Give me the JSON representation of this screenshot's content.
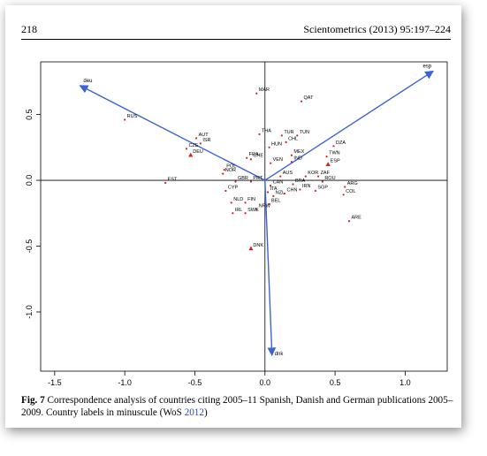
{
  "header": {
    "page_number": "218",
    "running_head": "Scientometrics (2013) 95:197–224"
  },
  "caption": {
    "label": "Fig. 7",
    "text": "Correspondence analysis of countries citing 2005–11 Spanish, Danish and German publications 2005–2009. Country labels in minuscule (WoS ",
    "cite": "2012",
    "close": ")"
  },
  "colors": {
    "vector": "#3b63d6",
    "point": "#cc2222",
    "axis": "#000000"
  },
  "chart_data": {
    "type": "scatter",
    "xlim": [
      -1.6,
      1.3
    ],
    "ylim": [
      -1.45,
      0.9
    ],
    "x_ticks": [
      -1.5,
      -1.0,
      -0.5,
      0.0,
      0.5,
      1.0
    ],
    "x_tick_labels": [
      "-1.5",
      "-1.0",
      "-0.5",
      "0.0",
      "0.5",
      "1.0"
    ],
    "y_ticks": [
      0.5,
      0.0,
      -0.5,
      -1.0
    ],
    "y_tick_labels": [
      "0.5",
      "0.0",
      "-0.5",
      "-1.0"
    ],
    "grid": false,
    "vectors": [
      {
        "name": "deu",
        "x": -1.32,
        "y": 0.72
      },
      {
        "name": "esp",
        "x": 1.2,
        "y": 0.83
      },
      {
        "name": "dnk",
        "x": 0.05,
        "y": -1.33
      }
    ],
    "points": [
      {
        "label": "MAR",
        "x": -0.06,
        "y": 0.66,
        "marker": "dot"
      },
      {
        "label": "QAT",
        "x": 0.26,
        "y": 0.6,
        "marker": "dot"
      },
      {
        "label": "RUS",
        "x": -1.0,
        "y": 0.46,
        "marker": "dot"
      },
      {
        "label": "AUT",
        "x": -0.49,
        "y": 0.32,
        "marker": "dot"
      },
      {
        "label": "ISR",
        "x": -0.46,
        "y": 0.28,
        "marker": "dot"
      },
      {
        "label": "THA",
        "x": -0.04,
        "y": 0.35,
        "marker": "dot"
      },
      {
        "label": "TUR",
        "x": 0.12,
        "y": 0.34,
        "marker": "dot"
      },
      {
        "label": "TUN",
        "x": 0.23,
        "y": 0.34,
        "marker": "dot"
      },
      {
        "label": "CHL",
        "x": 0.15,
        "y": 0.29,
        "marker": "dot"
      },
      {
        "label": "CZE",
        "x": -0.56,
        "y": 0.24,
        "marker": "dot"
      },
      {
        "label": "HUN",
        "x": 0.03,
        "y": 0.25,
        "marker": "dot"
      },
      {
        "label": "DZA",
        "x": 0.49,
        "y": 0.26,
        "marker": "dot"
      },
      {
        "label": "DEU",
        "x": -0.53,
        "y": 0.19,
        "marker": "triangle"
      },
      {
        "label": "FRA",
        "x": -0.13,
        "y": 0.17,
        "marker": "dot"
      },
      {
        "label": "CHE",
        "x": -0.1,
        "y": 0.16,
        "marker": "dot"
      },
      {
        "label": "MEX",
        "x": 0.19,
        "y": 0.19,
        "marker": "dot"
      },
      {
        "label": "TWN",
        "x": 0.44,
        "y": 0.18,
        "marker": "dot"
      },
      {
        "label": "VEN",
        "x": 0.04,
        "y": 0.13,
        "marker": "dot"
      },
      {
        "label": "IND",
        "x": 0.19,
        "y": 0.14,
        "marker": "dot"
      },
      {
        "label": "ESP",
        "x": 0.45,
        "y": 0.12,
        "marker": "triangle"
      },
      {
        "label": "NOR",
        "x": -0.3,
        "y": 0.05,
        "marker": "dot"
      },
      {
        "label": "POL",
        "x": -0.29,
        "y": 0.08,
        "marker": "dot"
      },
      {
        "label": "AUS",
        "x": 0.11,
        "y": 0.03,
        "marker": "dot"
      },
      {
        "label": "KOR",
        "x": 0.29,
        "y": 0.03,
        "marker": "dot"
      },
      {
        "label": "ZAF",
        "x": 0.38,
        "y": 0.03,
        "marker": "dot"
      },
      {
        "label": "ROU",
        "x": 0.41,
        "y": -0.01,
        "marker": "dot"
      },
      {
        "label": "EST",
        "x": -0.71,
        "y": -0.02,
        "marker": "dot"
      },
      {
        "label": "GBR",
        "x": -0.21,
        "y": -0.01,
        "marker": "dot"
      },
      {
        "label": "PRT",
        "x": -0.1,
        "y": -0.01,
        "marker": "dot"
      },
      {
        "label": "BRA",
        "x": 0.2,
        "y": -0.03,
        "marker": "dot"
      },
      {
        "label": "ARG",
        "x": 0.57,
        "y": -0.05,
        "marker": "dot"
      },
      {
        "label": "CAN",
        "x": 0.04,
        "y": -0.04,
        "marker": "dot"
      },
      {
        "label": "IRN",
        "x": 0.25,
        "y": -0.07,
        "marker": "dot"
      },
      {
        "label": "SGP",
        "x": 0.36,
        "y": -0.08,
        "marker": "dot"
      },
      {
        "label": "CYP",
        "x": -0.28,
        "y": -0.08,
        "marker": "dot"
      },
      {
        "label": "ITA",
        "x": 0.02,
        "y": -0.09,
        "marker": "dot"
      },
      {
        "label": "CHN",
        "x": 0.14,
        "y": -0.1,
        "marker": "dot"
      },
      {
        "label": "COL",
        "x": 0.56,
        "y": -0.11,
        "marker": "dot"
      },
      {
        "label": "NZL",
        "x": 0.06,
        "y": -0.12,
        "marker": "dot"
      },
      {
        "label": "NLD",
        "x": -0.24,
        "y": -0.17,
        "marker": "dot"
      },
      {
        "label": "FIN",
        "x": -0.14,
        "y": -0.17,
        "marker": "dot"
      },
      {
        "label": "BEL",
        "x": 0.03,
        "y": -0.18,
        "marker": "dot"
      },
      {
        "label": "NRW",
        "x": -0.06,
        "y": -0.22,
        "marker": "dot"
      },
      {
        "label": "IRL",
        "x": -0.23,
        "y": -0.25,
        "marker": "dot"
      },
      {
        "label": "SWE",
        "x": -0.14,
        "y": -0.25,
        "marker": "dot"
      },
      {
        "label": "ARE",
        "x": 0.6,
        "y": -0.31,
        "marker": "dot"
      },
      {
        "label": "DNK",
        "x": -0.1,
        "y": -0.52,
        "marker": "triangle"
      }
    ]
  }
}
